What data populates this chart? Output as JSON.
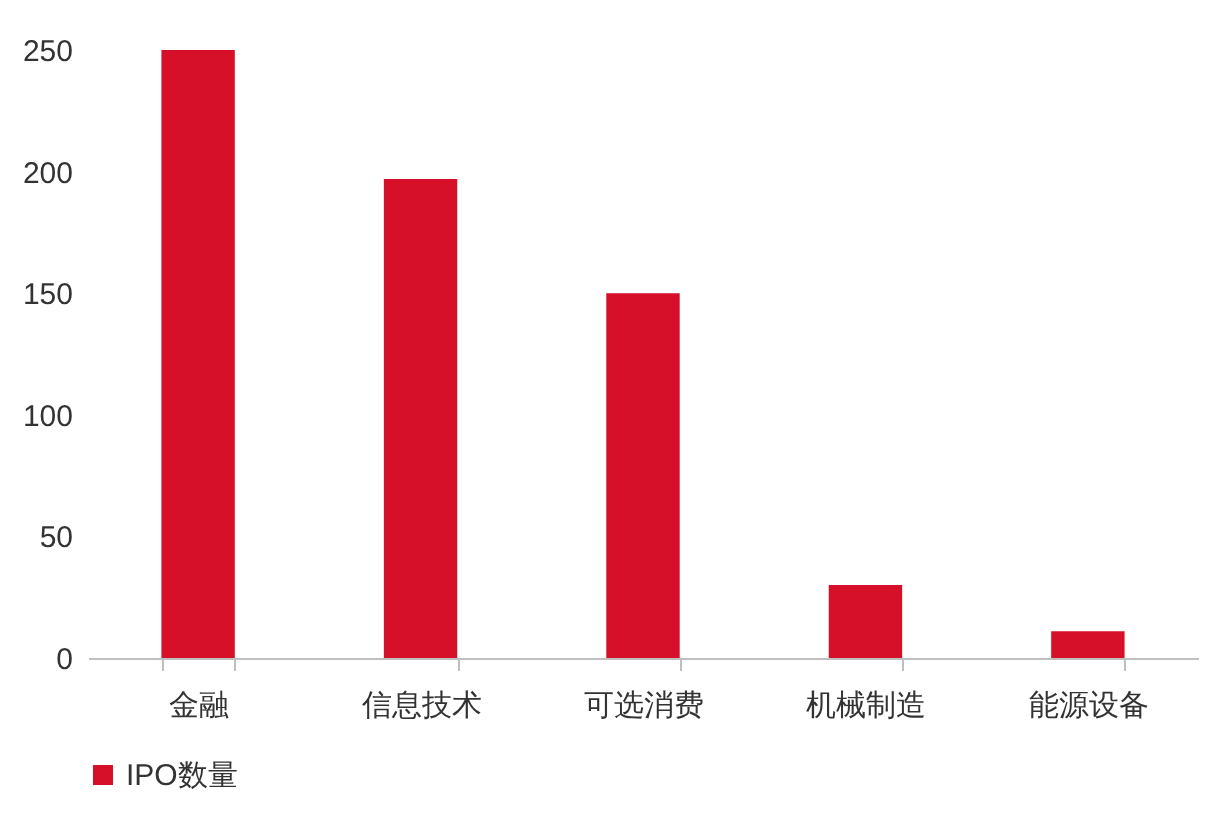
{
  "chart_data": {
    "type": "bar",
    "categories": [
      "金融",
      "信息技术",
      "可选消费",
      "机械制造",
      "能源设备"
    ],
    "series": [
      {
        "name": "IPO数量",
        "color": "#d7102a",
        "values": [
          250,
          197,
          150,
          30,
          11
        ]
      }
    ],
    "ylim": [
      0,
      250
    ],
    "yticks": [
      0,
      50,
      100,
      150,
      200,
      250
    ],
    "grid": false,
    "legend": "bottom"
  }
}
